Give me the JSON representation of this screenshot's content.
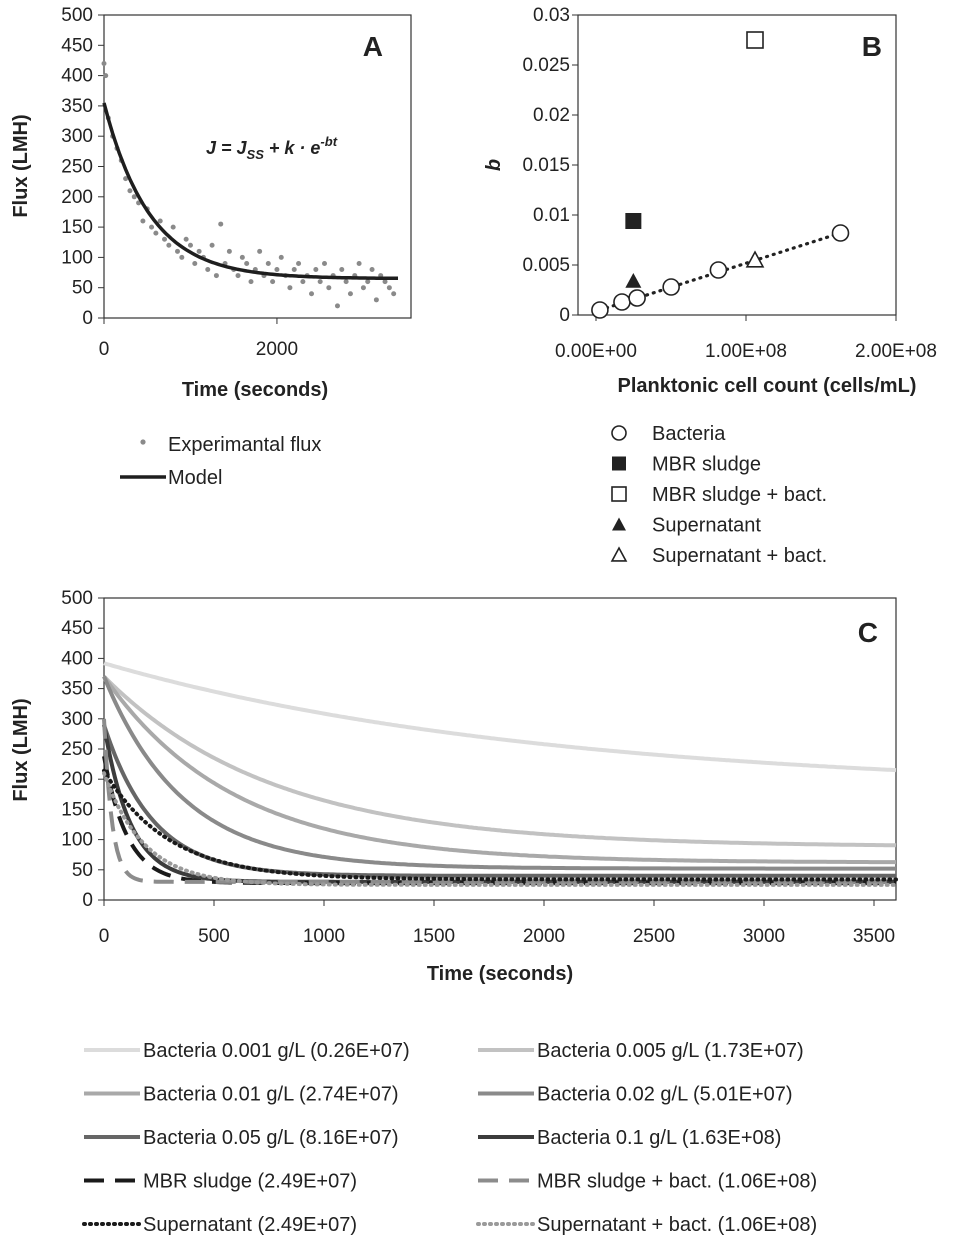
{
  "chart_data": [
    {
      "type": "scatter",
      "panel_label": "A",
      "xlabel": "Time (seconds)",
      "ylabel": "Flux (LMH)",
      "xlim": [
        0,
        3400
      ],
      "ylim": [
        0,
        500
      ],
      "xticks": [
        "0",
        "2000"
      ],
      "yticks": [
        "0",
        "50",
        "100",
        "150",
        "200",
        "250",
        "300",
        "350",
        "400",
        "450",
        "500"
      ],
      "annotation_parts": [
        "J = J",
        "SS",
        " + k · e",
        "-bt"
      ],
      "legend": [
        "Experimantal flux",
        "Model"
      ],
      "legend_position": "bottom",
      "model": {
        "J_ss": 65,
        "k": 290,
        "b": 0.0019
      },
      "series": [
        {
          "name": "Experimantal flux",
          "points": [
            [
              0,
              420
            ],
            [
              20,
              400
            ],
            [
              50,
              330
            ],
            [
              100,
              300
            ],
            [
              150,
              280
            ],
            [
              200,
              260
            ],
            [
              250,
              230
            ],
            [
              300,
              210
            ],
            [
              350,
              200
            ],
            [
              400,
              190
            ],
            [
              450,
              160
            ],
            [
              500,
              180
            ],
            [
              550,
              150
            ],
            [
              600,
              140
            ],
            [
              650,
              160
            ],
            [
              700,
              130
            ],
            [
              750,
              120
            ],
            [
              800,
              150
            ],
            [
              850,
              110
            ],
            [
              900,
              100
            ],
            [
              950,
              130
            ],
            [
              1000,
              120
            ],
            [
              1050,
              90
            ],
            [
              1100,
              110
            ],
            [
              1150,
              100
            ],
            [
              1200,
              80
            ],
            [
              1250,
              120
            ],
            [
              1300,
              70
            ],
            [
              1350,
              155
            ],
            [
              1400,
              90
            ],
            [
              1450,
              110
            ],
            [
              1500,
              80
            ],
            [
              1550,
              70
            ],
            [
              1600,
              100
            ],
            [
              1650,
              90
            ],
            [
              1700,
              60
            ],
            [
              1750,
              80
            ],
            [
              1800,
              110
            ],
            [
              1850,
              70
            ],
            [
              1900,
              90
            ],
            [
              1950,
              60
            ],
            [
              2000,
              80
            ],
            [
              2050,
              100
            ],
            [
              2100,
              70
            ],
            [
              2150,
              50
            ],
            [
              2200,
              80
            ],
            [
              2250,
              90
            ],
            [
              2300,
              60
            ],
            [
              2350,
              70
            ],
            [
              2400,
              40
            ],
            [
              2450,
              80
            ],
            [
              2500,
              60
            ],
            [
              2550,
              90
            ],
            [
              2600,
              50
            ],
            [
              2650,
              70
            ],
            [
              2700,
              20
            ],
            [
              2750,
              80
            ],
            [
              2800,
              60
            ],
            [
              2850,
              40
            ],
            [
              2900,
              70
            ],
            [
              2950,
              90
            ],
            [
              3000,
              50
            ],
            [
              3050,
              60
            ],
            [
              3100,
              80
            ],
            [
              3150,
              30
            ],
            [
              3200,
              70
            ],
            [
              3250,
              60
            ],
            [
              3300,
              50
            ],
            [
              3350,
              40
            ]
          ]
        },
        {
          "name": "Model",
          "kind": "line"
        }
      ]
    },
    {
      "type": "scatter",
      "panel_label": "B",
      "xlabel": "Planktonic cell count (cells/mL)",
      "ylabel": "b",
      "xlim": [
        0,
        200000000
      ],
      "ylim": [
        0,
        0.03
      ],
      "xticks": [
        "0.00E+00",
        "1.00E+08",
        "2.00E+08"
      ],
      "yticks": [
        "0",
        "0.005",
        "0.01",
        "0.015",
        "0.02",
        "0.025",
        "0.03"
      ],
      "legend": [
        "Bacteria",
        "MBR sludge",
        "MBR sludge + bact.",
        "Supernatant",
        "Supernatant + bact."
      ],
      "legend_position": "bottom",
      "trendline": {
        "style": "dotted",
        "x": [
          2600000,
          163000000
        ],
        "y": [
          0.0005,
          0.0082
        ]
      },
      "series": [
        {
          "name": "Bacteria",
          "marker": "open-circle",
          "x": [
            2600000,
            17300000,
            27400000,
            50100000,
            81600000,
            163000000
          ],
          "y": [
            0.0005,
            0.0013,
            0.0017,
            0.0028,
            0.0045,
            0.0082
          ]
        },
        {
          "name": "MBR sludge",
          "marker": "filled-square",
          "x": [
            24900000
          ],
          "y": [
            0.0094
          ]
        },
        {
          "name": "MBR sludge + bact.",
          "marker": "open-square",
          "x": [
            106000000
          ],
          "y": [
            0.0275
          ]
        },
        {
          "name": "Supernatant",
          "marker": "filled-triangle",
          "x": [
            24900000
          ],
          "y": [
            0.0034
          ]
        },
        {
          "name": "Supernatant + bact.",
          "marker": "open-triangle",
          "x": [
            106000000
          ],
          "y": [
            0.0055
          ]
        }
      ]
    },
    {
      "type": "line",
      "panel_label": "C",
      "xlabel": "Time (seconds)",
      "ylabel": "Flux (LMH)",
      "xlim": [
        0,
        3600
      ],
      "ylim": [
        0,
        500
      ],
      "xticks": [
        "0",
        "500",
        "1000",
        "1500",
        "2000",
        "2500",
        "3000",
        "3500"
      ],
      "yticks": [
        "0",
        "50",
        "100",
        "150",
        "200",
        "250",
        "300",
        "350",
        "400",
        "450",
        "500"
      ],
      "legend_position": "bottom",
      "series": [
        {
          "name": "Bacteria 0.001 g/L (0.26E+07)",
          "color": "#dcdcdc",
          "dash": "solid",
          "model": {
            "J_ss": 180,
            "k": 212,
            "b": 0.0005
          }
        },
        {
          "name": "Bacteria 0.005 g/L (1.73E+07)",
          "color": "#c2c2c2",
          "dash": "solid",
          "model": {
            "J_ss": 88,
            "k": 282,
            "b": 0.0013
          }
        },
        {
          "name": "Bacteria 0.01 g/L (2.74E+07)",
          "color": "#a9a9a9",
          "dash": "solid",
          "model": {
            "J_ss": 62,
            "k": 308,
            "b": 0.0017
          }
        },
        {
          "name": "Bacteria 0.02 g/L (5.01E+07)",
          "color": "#8a8a8a",
          "dash": "solid",
          "model": {
            "J_ss": 52,
            "k": 318,
            "b": 0.0028
          }
        },
        {
          "name": "Bacteria 0.05 g/L (8.16E+07)",
          "color": "#666666",
          "dash": "solid",
          "model": {
            "J_ss": 40,
            "k": 250,
            "b": 0.0045
          }
        },
        {
          "name": "Bacteria 0.1 g/L (1.63E+08)",
          "color": "#3c3c3c",
          "dash": "solid",
          "model": {
            "J_ss": 30,
            "k": 260,
            "b": 0.0082
          }
        },
        {
          "name": "MBR sludge (2.49E+07)",
          "color": "#1a1a1a",
          "dash": "longdash",
          "model": {
            "J_ss": 28,
            "k": 210,
            "b": 0.0094
          }
        },
        {
          "name": "MBR sludge + bact. (1.06E+08)",
          "color": "#8c8c8c",
          "dash": "longdash",
          "model": {
            "J_ss": 30,
            "k": 270,
            "b": 0.0275
          }
        },
        {
          "name": "Supernatant (2.49E+07)",
          "color": "#1a1a1a",
          "dash": "dotted",
          "model": {
            "J_ss": 34,
            "k": 180,
            "b": 0.0034
          }
        },
        {
          "name": "Supernatant + bact. (1.06E+08)",
          "color": "#9a9a9a",
          "dash": "dotted",
          "model": {
            "J_ss": 25,
            "k": 185,
            "b": 0.0055
          }
        }
      ]
    }
  ]
}
